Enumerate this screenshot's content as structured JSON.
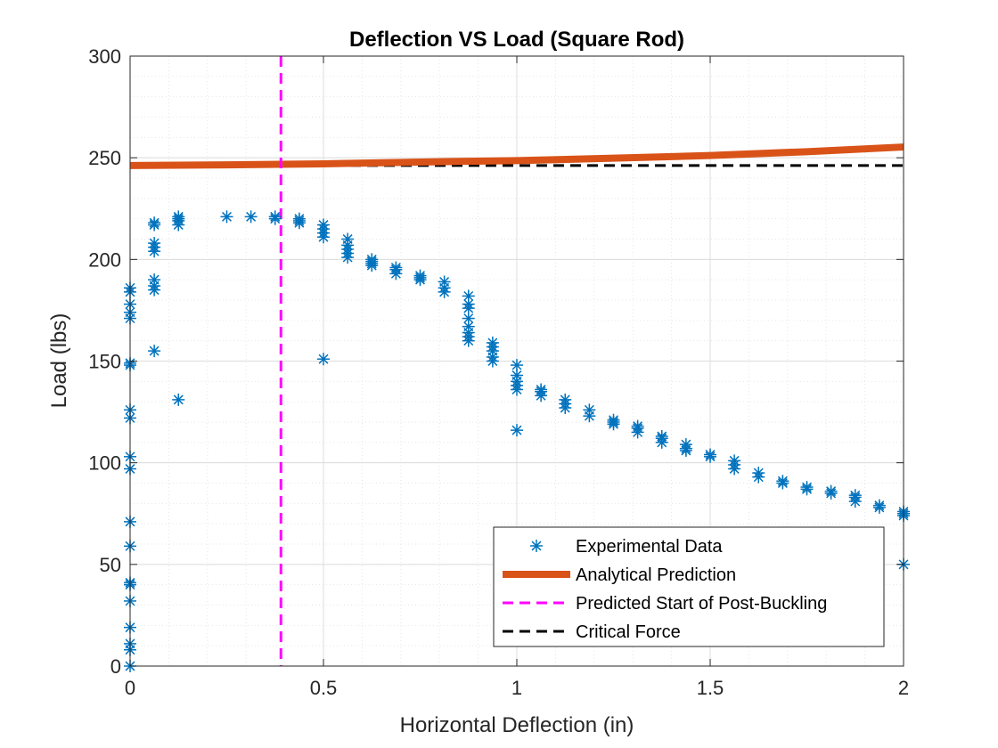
{
  "chart_data": {
    "type": "scatter",
    "title": "Deflection VS Load (Square Rod)",
    "xlabel": "Horizontal Deflection (in)",
    "ylabel": "Load (lbs)",
    "xlim": [
      0,
      2
    ],
    "ylim": [
      0,
      300
    ],
    "xticks": [
      0,
      0.5,
      1,
      1.5,
      2
    ],
    "xtick_labels": [
      "0",
      "0.5",
      "1",
      "1.5",
      "2"
    ],
    "yticks": [
      0,
      50,
      100,
      150,
      200,
      250,
      300
    ],
    "ytick_labels": [
      "0",
      "50",
      "100",
      "150",
      "200",
      "250",
      "300"
    ],
    "grid": true,
    "minor_grid": true,
    "legend_position": "bottom-right",
    "colors": {
      "experimental": "#0072BD",
      "analytical": "#D95319",
      "post_buckling": "#FF00FF",
      "critical": "#000000",
      "grid": "#e6e6e6",
      "axis": "#262626"
    },
    "series": [
      {
        "name": "Experimental Data",
        "style": "asterisk",
        "points": [
          [
            0,
            0
          ],
          [
            0,
            8
          ],
          [
            0,
            11
          ],
          [
            0,
            19
          ],
          [
            0,
            32
          ],
          [
            0,
            40
          ],
          [
            0,
            41
          ],
          [
            0,
            59
          ],
          [
            0,
            71
          ],
          [
            0,
            97
          ],
          [
            0,
            103
          ],
          [
            0,
            122
          ],
          [
            0,
            126
          ],
          [
            0,
            148
          ],
          [
            0,
            149
          ],
          [
            0,
            171
          ],
          [
            0,
            174
          ],
          [
            0,
            178
          ],
          [
            0,
            184
          ],
          [
            0,
            186
          ],
          [
            0.0625,
            155
          ],
          [
            0.0625,
            185
          ],
          [
            0.0625,
            187
          ],
          [
            0.0625,
            190
          ],
          [
            0.0625,
            204
          ],
          [
            0.0625,
            206
          ],
          [
            0.0625,
            208
          ],
          [
            0.0625,
            217
          ],
          [
            0.0625,
            218
          ],
          [
            0.125,
            131
          ],
          [
            0.125,
            217
          ],
          [
            0.125,
            219
          ],
          [
            0.125,
            220
          ],
          [
            0.125,
            221
          ],
          [
            0.25,
            221
          ],
          [
            0.3125,
            221
          ],
          [
            0.375,
            220
          ],
          [
            0.375,
            221
          ],
          [
            0.4375,
            218
          ],
          [
            0.4375,
            219
          ],
          [
            0.4375,
            220
          ],
          [
            0.5,
            151
          ],
          [
            0.5,
            211
          ],
          [
            0.5,
            213
          ],
          [
            0.5,
            215
          ],
          [
            0.5,
            217
          ],
          [
            0.5625,
            201
          ],
          [
            0.5625,
            203
          ],
          [
            0.5625,
            205
          ],
          [
            0.5625,
            207
          ],
          [
            0.5625,
            210
          ],
          [
            0.625,
            197
          ],
          [
            0.625,
            198
          ],
          [
            0.625,
            199
          ],
          [
            0.625,
            200
          ],
          [
            0.6875,
            193
          ],
          [
            0.6875,
            195
          ],
          [
            0.6875,
            196
          ],
          [
            0.75,
            190
          ],
          [
            0.75,
            191
          ],
          [
            0.75,
            192
          ],
          [
            0.8125,
            184
          ],
          [
            0.8125,
            186
          ],
          [
            0.8125,
            189
          ],
          [
            0.875,
            160
          ],
          [
            0.875,
            162
          ],
          [
            0.875,
            164
          ],
          [
            0.875,
            167
          ],
          [
            0.875,
            171
          ],
          [
            0.875,
            176
          ],
          [
            0.875,
            178
          ],
          [
            0.875,
            182
          ],
          [
            0.9375,
            150
          ],
          [
            0.9375,
            152
          ],
          [
            0.9375,
            155
          ],
          [
            0.9375,
            157
          ],
          [
            0.9375,
            159
          ],
          [
            1,
            116
          ],
          [
            1,
            136
          ],
          [
            1,
            138
          ],
          [
            1,
            140
          ],
          [
            1,
            143
          ],
          [
            1,
            148
          ],
          [
            1.0625,
            133
          ],
          [
            1.0625,
            135
          ],
          [
            1.0625,
            136
          ],
          [
            1.125,
            127
          ],
          [
            1.125,
            129
          ],
          [
            1.125,
            131
          ],
          [
            1.1875,
            123
          ],
          [
            1.1875,
            126
          ],
          [
            1.25,
            119
          ],
          [
            1.25,
            120
          ],
          [
            1.25,
            121
          ],
          [
            1.3125,
            115
          ],
          [
            1.3125,
            117
          ],
          [
            1.3125,
            118
          ],
          [
            1.375,
            110
          ],
          [
            1.375,
            112
          ],
          [
            1.375,
            113
          ],
          [
            1.4375,
            106
          ],
          [
            1.4375,
            107
          ],
          [
            1.4375,
            109
          ],
          [
            1.5,
            103
          ],
          [
            1.5,
            104
          ],
          [
            1.5625,
            97
          ],
          [
            1.5625,
            99
          ],
          [
            1.5625,
            101
          ],
          [
            1.625,
            93
          ],
          [
            1.625,
            95
          ],
          [
            1.6875,
            90
          ],
          [
            1.6875,
            91
          ],
          [
            1.75,
            88
          ],
          [
            1.75,
            87
          ],
          [
            1.8125,
            85
          ],
          [
            1.8125,
            86
          ],
          [
            1.875,
            81
          ],
          [
            1.875,
            83
          ],
          [
            1.875,
            84
          ],
          [
            1.9375,
            78
          ],
          [
            1.9375,
            79
          ],
          [
            2,
            50
          ],
          [
            2,
            74
          ],
          [
            2,
            75
          ],
          [
            2,
            76
          ]
        ]
      },
      {
        "name": "Analytical Prediction",
        "style": "line",
        "x": [
          0,
          0.25,
          0.5,
          0.75,
          1,
          1.25,
          1.5,
          1.75,
          2
        ],
        "y": [
          246.2,
          246.5,
          247.0,
          247.9,
          248.6,
          249.8,
          251.1,
          253.0,
          255.3
        ]
      },
      {
        "name": "Predicted Start of Post-Buckling",
        "style": "dashed-vertical",
        "x": 0.39
      },
      {
        "name": "Critical Force",
        "style": "dashed-horizontal",
        "y": 246.2
      }
    ]
  }
}
